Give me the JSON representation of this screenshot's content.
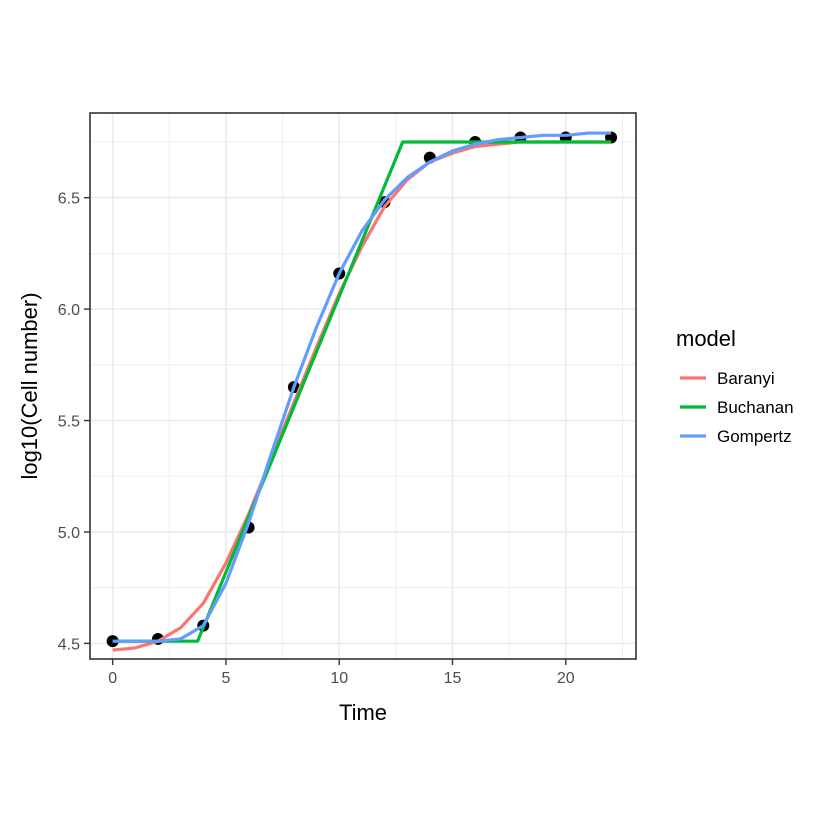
{
  "chart_data": {
    "type": "line",
    "title": "",
    "xlabel": "Time",
    "ylabel": "log10(Cell number)",
    "xlim": [
      -1,
      23.1
    ],
    "ylim": [
      4.43,
      6.88
    ],
    "x_ticks": [
      0,
      5,
      10,
      15,
      20
    ],
    "x_tick_labels": [
      "0",
      "5",
      "10",
      "15",
      "20"
    ],
    "y_ticks": [
      4.5,
      5.0,
      5.5,
      6.0,
      6.5
    ],
    "y_tick_labels": [
      "4.5",
      "5.0",
      "5.5",
      "6.0",
      "6.5"
    ],
    "grid": true,
    "legend": {
      "title": "model",
      "position": "right"
    },
    "observations": {
      "x": [
        0,
        2,
        4,
        6,
        8,
        10,
        12,
        14,
        16,
        18,
        20,
        22
      ],
      "y": [
        4.51,
        4.52,
        4.58,
        5.02,
        5.65,
        6.16,
        6.48,
        6.68,
        6.75,
        6.77,
        6.77,
        6.77
      ],
      "color": "#000000"
    },
    "series": [
      {
        "name": "Baranyi",
        "color": "#F8766D",
        "x": [
          0,
          1,
          2,
          3,
          4,
          5,
          6,
          7,
          8,
          9,
          10,
          11,
          12,
          13,
          14,
          15,
          16,
          17,
          18,
          19,
          20,
          21,
          22
        ],
        "y": [
          4.47,
          4.48,
          4.51,
          4.57,
          4.68,
          4.86,
          5.08,
          5.33,
          5.58,
          5.83,
          6.07,
          6.28,
          6.46,
          6.58,
          6.66,
          6.7,
          6.73,
          6.74,
          6.75,
          6.75,
          6.75,
          6.75,
          6.75
        ]
      },
      {
        "name": "Buchanan",
        "color": "#00BA38",
        "x": [
          0,
          3.75,
          12.8,
          22
        ],
        "y": [
          4.51,
          4.51,
          6.75,
          6.75
        ]
      },
      {
        "name": "Gompertz",
        "color": "#619CFF",
        "x": [
          0,
          1,
          2,
          3,
          4,
          5,
          6,
          7,
          8,
          9,
          10,
          11,
          12,
          13,
          14,
          15,
          16,
          17,
          18,
          19,
          20,
          21,
          22
        ],
        "y": [
          4.51,
          4.51,
          4.51,
          4.52,
          4.58,
          4.77,
          5.04,
          5.35,
          5.65,
          5.92,
          6.16,
          6.35,
          6.49,
          6.59,
          6.66,
          6.71,
          6.74,
          6.76,
          6.77,
          6.78,
          6.78,
          6.79,
          6.79
        ]
      }
    ]
  }
}
